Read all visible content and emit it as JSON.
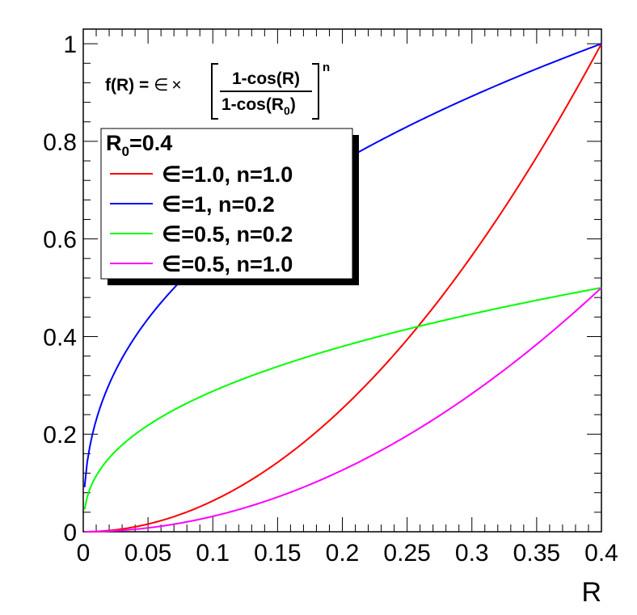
{
  "chart_data": {
    "type": "line",
    "xlabel": "R",
    "ylabel": "",
    "xlim": [
      0,
      0.4
    ],
    "ylim": [
      0,
      1.03
    ],
    "x_ticks": [
      "0",
      "0.05",
      "0.1",
      "0.15",
      "0.2",
      "0.25",
      "0.3",
      "0.35",
      "0.4"
    ],
    "y_ticks": [
      "0",
      "0.2",
      "0.4",
      "0.6",
      "0.8",
      "1"
    ],
    "grid": false,
    "formula": {
      "lhs": "f(R) = ",
      "eps": "∈",
      "times": "×",
      "numerator": "1-cos(R)",
      "denominator_main": "1-cos(R",
      "denominator_sub": "0",
      "denominator_close": ")",
      "exponent": "n"
    },
    "legend": {
      "placement": "top-left",
      "header_main": "R",
      "header_sub": "0",
      "header_rest": "=0.4"
    },
    "R0": 0.4,
    "series": [
      {
        "name": "∈=1.0, n=1.0",
        "epsilon": 1.0,
        "n": 1.0,
        "color": "#ff0000",
        "x": [
          0.001,
          0.05,
          0.1,
          0.15,
          0.2,
          0.25,
          0.3,
          0.35,
          0.4
        ],
        "values": [
          0.0,
          0.016,
          0.063,
          0.141,
          0.25,
          0.389,
          0.559,
          0.76,
          0.99
        ]
      },
      {
        "name": "∈=1, n=0.2",
        "epsilon": 1.0,
        "n": 0.2,
        "color": "#0000ff",
        "x": [
          0.001,
          0.05,
          0.1,
          0.15,
          0.2,
          0.25,
          0.3,
          0.35,
          0.4
        ],
        "values": [
          0.12,
          0.436,
          0.575,
          0.676,
          0.758,
          0.828,
          0.89,
          0.946,
          1.0
        ]
      },
      {
        "name": "∈=0.5, n=0.2",
        "epsilon": 0.5,
        "n": 0.2,
        "color": "#00ff00",
        "x": [
          0.001,
          0.05,
          0.1,
          0.15,
          0.2,
          0.25,
          0.3,
          0.35,
          0.4
        ],
        "values": [
          0.06,
          0.218,
          0.287,
          0.338,
          0.379,
          0.414,
          0.445,
          0.473,
          0.5
        ]
      },
      {
        "name": "∈=0.5, n=1.0",
        "epsilon": 0.5,
        "n": 1.0,
        "color": "#ff00ff",
        "x": [
          0.001,
          0.05,
          0.1,
          0.15,
          0.2,
          0.25,
          0.3,
          0.35,
          0.4
        ],
        "values": [
          0.0,
          0.008,
          0.031,
          0.07,
          0.125,
          0.195,
          0.28,
          0.38,
          0.495
        ]
      }
    ]
  }
}
